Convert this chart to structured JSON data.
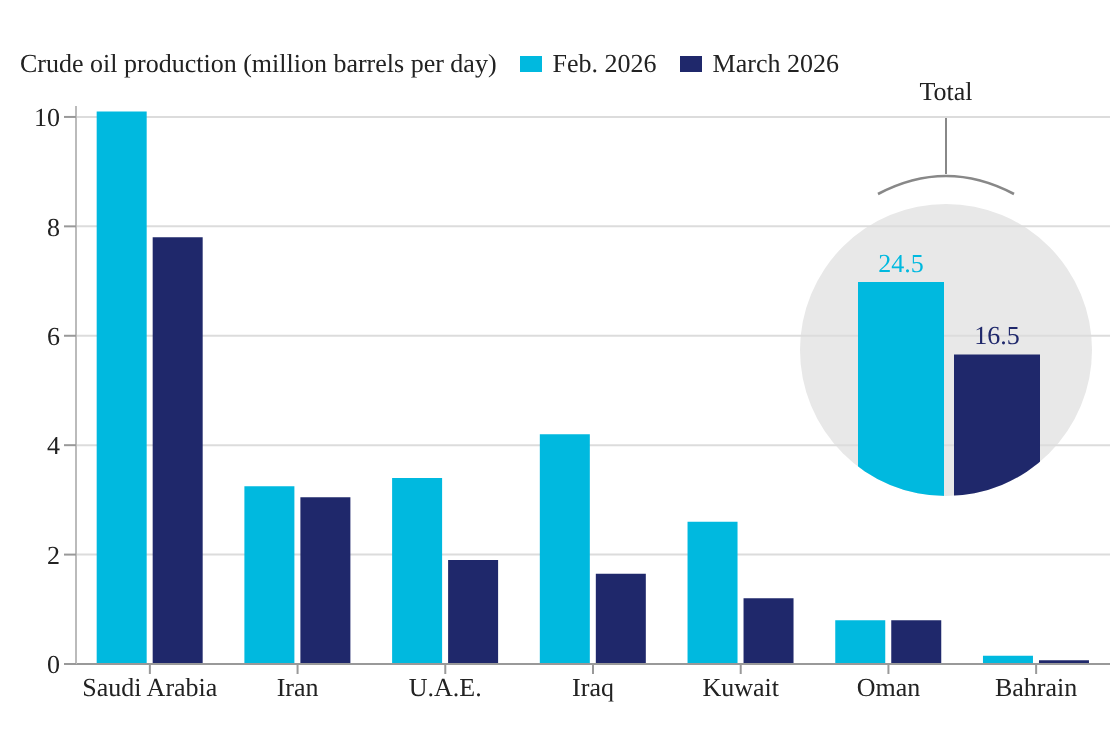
{
  "chart_data": [
    {
      "type": "bar",
      "title": "Crude oil production (million barrels per day)",
      "categories": [
        "Saudi Arabia",
        "Iran",
        "U.A.E.",
        "Iraq",
        "Kuwait",
        "Oman",
        "Bahrain"
      ],
      "series": [
        {
          "name": "Feb. 2026",
          "color": "#00b9df",
          "values": [
            10.1,
            3.25,
            3.4,
            4.2,
            2.6,
            0.8,
            0.15
          ]
        },
        {
          "name": "March 2026",
          "color": "#1f286b",
          "values": [
            7.8,
            3.05,
            1.9,
            1.65,
            1.2,
            0.8,
            0.07
          ]
        }
      ],
      "ylim": [
        0,
        10.2
      ],
      "yticks": [
        0,
        2,
        4,
        6,
        8,
        10
      ],
      "grid": "y",
      "legend": "top"
    },
    {
      "type": "bar",
      "title": "Total",
      "categories": [
        null
      ],
      "series": [
        {
          "color": "#00b9df",
          "values": [
            24.5
          ]
        },
        {
          "color": "#1f286b",
          "values": [
            16.5
          ]
        }
      ],
      "data_labels": true
    }
  ]
}
